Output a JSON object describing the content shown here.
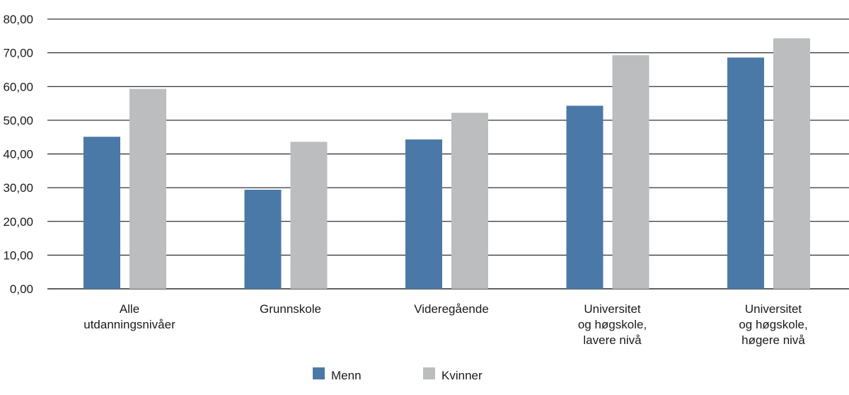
{
  "chart_data": {
    "type": "bar",
    "title": "",
    "xlabel": "",
    "ylabel": "",
    "ylim": [
      0,
      80
    ],
    "yticks": [
      "0,00",
      "10,00",
      "20,00",
      "30,00",
      "40,00",
      "50,00",
      "60,00",
      "70,00",
      "80,00"
    ],
    "grid": true,
    "legend_position": "bottom-center",
    "categories": [
      [
        "Alle",
        "utdanningsnivåer"
      ],
      [
        "Grunnskole"
      ],
      [
        "Videregående"
      ],
      [
        "Universitet",
        "og høgskole,",
        "lavere nivå"
      ],
      [
        "Universitet",
        "og høgskole,",
        "høgere nivå"
      ]
    ],
    "series": [
      {
        "name": "Menn",
        "color": "#4a79a8",
        "values": [
          45.1,
          29.4,
          44.3,
          54.3,
          68.6
        ]
      },
      {
        "name": "Kvinner",
        "color": "#bcbdbf",
        "values": [
          59.3,
          43.6,
          52.2,
          69.3,
          74.3
        ]
      }
    ]
  }
}
